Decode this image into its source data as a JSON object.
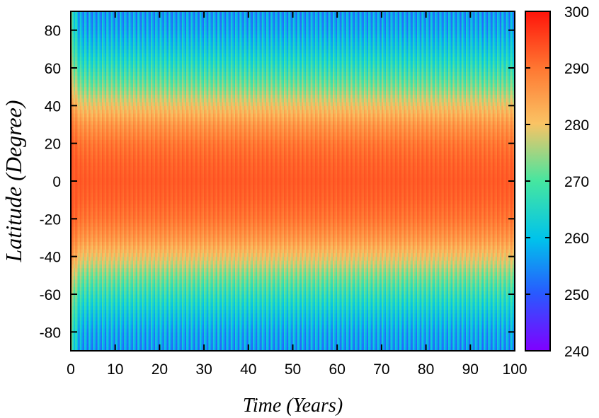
{
  "chart_data": {
    "type": "heatmap",
    "title": "",
    "xlabel": "Time (Years)",
    "ylabel": "Latitude (Degree)",
    "xlim": [
      0,
      100
    ],
    "ylim": [
      -90,
      90
    ],
    "x_ticks": [
      "0",
      "10",
      "20",
      "30",
      "40",
      "50",
      "60",
      "70",
      "80",
      "90",
      "100"
    ],
    "y_ticks": [
      "-80",
      "-60",
      "-40",
      "-20",
      "0",
      "20",
      "40",
      "60",
      "80"
    ],
    "colorbar": {
      "range": [
        240,
        300
      ],
      "ticks": [
        "240",
        "250",
        "260",
        "270",
        "280",
        "290",
        "300"
      ],
      "colormap": "rainbow"
    },
    "pattern": {
      "latitudes": [
        -90,
        -80,
        -70,
        -60,
        -50,
        -40,
        -30,
        -20,
        -10,
        0,
        10,
        20,
        30,
        40,
        50,
        60,
        70,
        80,
        90
      ],
      "annual_mean": [
        256,
        258,
        262,
        267,
        273,
        280,
        286,
        290,
        292,
        293,
        292,
        290,
        286,
        280,
        273,
        267,
        262,
        258,
        256
      ],
      "seasonal_amplitude": [
        6,
        6,
        5,
        5,
        4,
        3,
        2.5,
        2,
        1.5,
        1,
        1.5,
        2,
        2.5,
        3,
        4,
        5,
        5,
        6,
        6
      ],
      "cycles_per_year": 1,
      "initial_spinup_years": 2
    }
  }
}
